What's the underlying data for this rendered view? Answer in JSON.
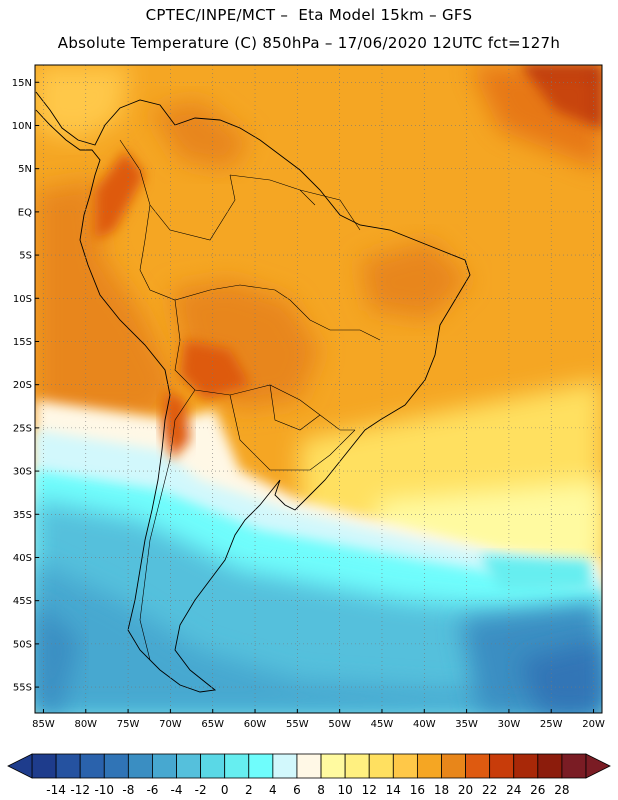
{
  "header": {
    "line1": "CPTEC/INPE/MCT –  Eta Model 15km – GFS",
    "line2": "Absolute Temperature (C) 850hPa – 17/06/2020 12UTC fct=127h"
  },
  "map": {
    "lon_range": [
      -86,
      -19
    ],
    "lat_range": [
      -58,
      17
    ],
    "lon_ticks": [
      -85,
      -80,
      -75,
      -70,
      -65,
      -60,
      -55,
      -50,
      -45,
      -40,
      -35,
      -30,
      -25,
      -20
    ],
    "lon_tick_labels": [
      "85W",
      "80W",
      "75W",
      "70W",
      "65W",
      "60W",
      "55W",
      "50W",
      "45W",
      "40W",
      "35W",
      "30W",
      "25W",
      "20W"
    ],
    "lat_ticks": [
      15,
      10,
      5,
      0,
      -5,
      -10,
      -15,
      -20,
      -25,
      -30,
      -35,
      -40,
      -45,
      -50,
      -55
    ],
    "lat_tick_labels": [
      "15N",
      "10N",
      "5N",
      "EQ",
      "5S",
      "10S",
      "15S",
      "20S",
      "25S",
      "30S",
      "35S",
      "40S",
      "45S",
      "50S",
      "55S"
    ],
    "grid": "dotted"
  },
  "colorbar": {
    "labels": [
      "-14",
      "-12",
      "-10",
      "-8",
      "-6",
      "-4",
      "-2",
      "0",
      "2",
      "4",
      "6",
      "8",
      "10",
      "12",
      "14",
      "16",
      "18",
      "20",
      "22",
      "24",
      "26",
      "28"
    ],
    "colors": [
      "#1e3c8c",
      "#2552a0",
      "#2a62ac",
      "#3074b6",
      "#3a8ec2",
      "#47a8d0",
      "#55c0dc",
      "#5ad8e6",
      "#66eef0",
      "#6ffdfc",
      "#d2f8fc",
      "#fff8e6",
      "#fffaa0",
      "#fff080",
      "#ffe060",
      "#ffc848",
      "#f5a623",
      "#e8861a",
      "#de5a10",
      "#c83c0a",
      "#a82808",
      "#8c1c0c",
      "#7a1c24"
    ]
  }
}
